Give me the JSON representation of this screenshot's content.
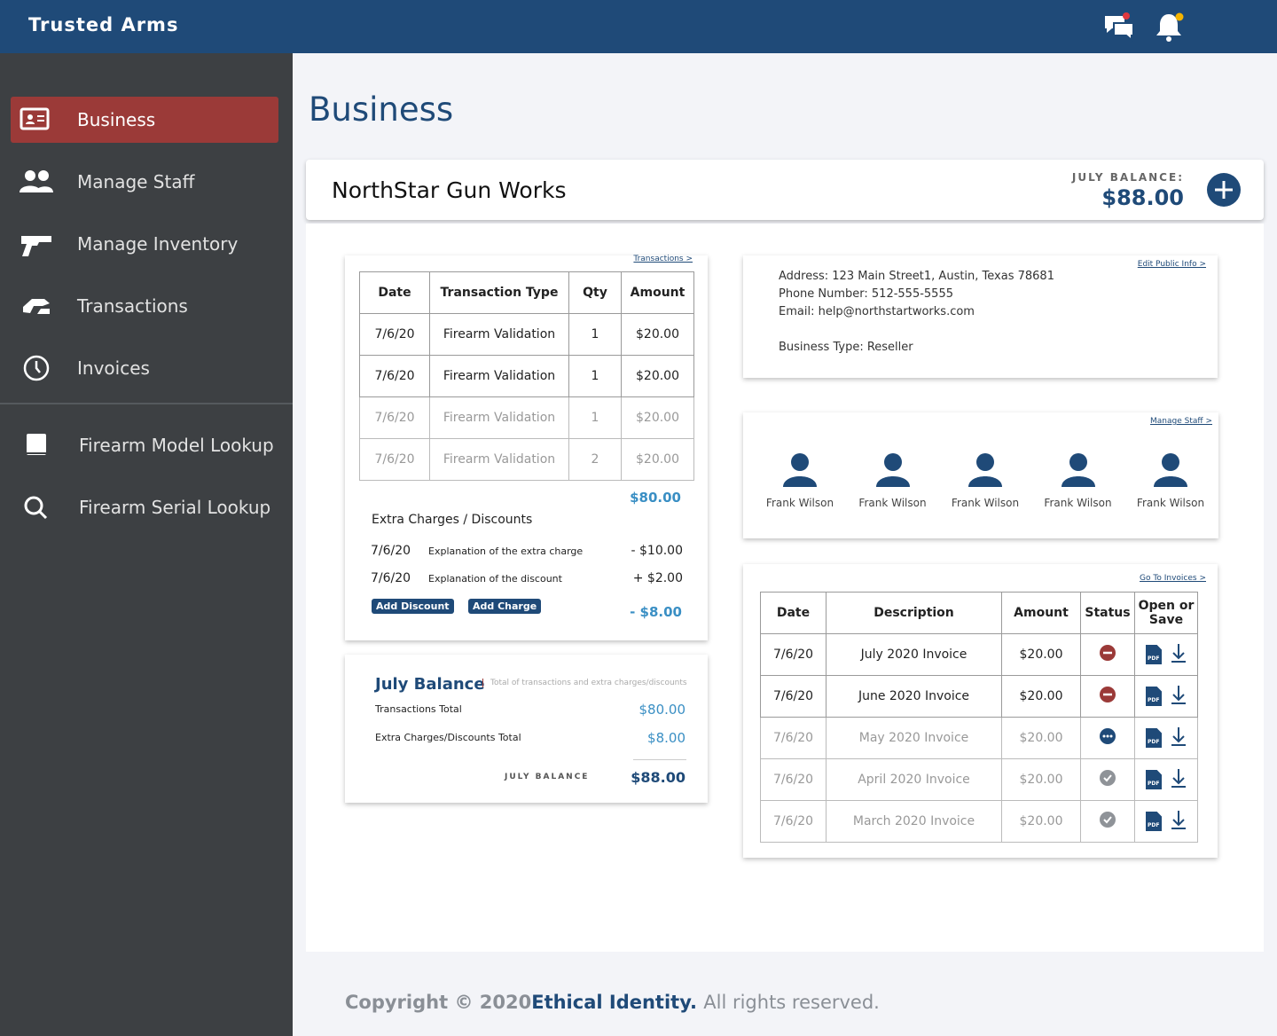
{
  "header": {
    "brand": "Trusted Arms"
  },
  "sidebar": {
    "items": [
      "Business",
      "Manage Staff",
      "Manage Inventory",
      "Transactions",
      "Invoices"
    ],
    "lookups": [
      "Firearm Model Lookup",
      "Firearm Serial Lookup"
    ]
  },
  "page": {
    "title": "Business"
  },
  "business": {
    "name": "NorthStar Gun Works",
    "balance_label": "JULY BALANCE:",
    "balance": "$88.00"
  },
  "transactions": {
    "link": "Transactions >",
    "columns": [
      "Date",
      "Transaction Type",
      "Qty",
      "Amount"
    ],
    "rows": [
      [
        "7/6/20",
        "Firearm Validation",
        "1",
        "$20.00"
      ],
      [
        "7/6/20",
        "Firearm Validation",
        "1",
        "$20.00"
      ],
      [
        "7/6/20",
        "Firearm Validation",
        "1",
        "$20.00"
      ],
      [
        "7/6/20",
        "Firearm Validation",
        "2",
        "$20.00"
      ]
    ],
    "total": "$80.00",
    "extra_title": "Extra Charges / Discounts",
    "extras": [
      [
        "7/6/20",
        "Explanation of the extra charge",
        "- $10.00"
      ],
      [
        "7/6/20",
        "Explanation of the discount",
        "+ $2.00"
      ]
    ],
    "buttons": [
      "Add Discount",
      "Add Charge"
    ],
    "extras_total": "- $8.00"
  },
  "summary": {
    "title": "July Balance",
    "note": "Total of transactions and extra charges/discounts",
    "rows": [
      [
        "Transactions Total",
        "$80.00"
      ],
      [
        "Extra Charges/Discounts Total",
        "$8.00"
      ]
    ],
    "balance_label": "JULY BALANCE",
    "balance": "$88.00"
  },
  "info": {
    "link": "Edit Public Info >",
    "lines": [
      "Address: 123 Main Street1, Austin, Texas 78681",
      "Phone Number: 512-555-5555",
      "Email: help@northstartworks.com",
      "Business Type: Reseller"
    ]
  },
  "staff": {
    "link": "Manage Staff >",
    "members": [
      "Frank Wilson",
      "Frank Wilson",
      "Frank Wilson",
      "Frank Wilson",
      "Frank Wilson"
    ]
  },
  "invoices": {
    "link": "Go To Invoices >",
    "columns": [
      "Date",
      "Description",
      "Amount",
      "Status",
      "Open or Save"
    ],
    "rows": [
      [
        "7/6/20",
        "July 2020 Invoice",
        "$20.00"
      ],
      [
        "7/6/20",
        "June 2020 Invoice",
        "$20.00"
      ],
      [
        "7/6/20",
        "May 2020 Invoice",
        "$20.00"
      ],
      [
        "7/6/20",
        "April 2020 Invoice",
        "$20.00"
      ],
      [
        "7/6/20",
        "March 2020 Invoice",
        "$20.00"
      ]
    ],
    "icon_label": "PDF"
  },
  "footer": {
    "copyright": "Copyright",
    "year": "© 2020",
    "company": "Ethical Identity.",
    "rights": "All rights reserved."
  }
}
